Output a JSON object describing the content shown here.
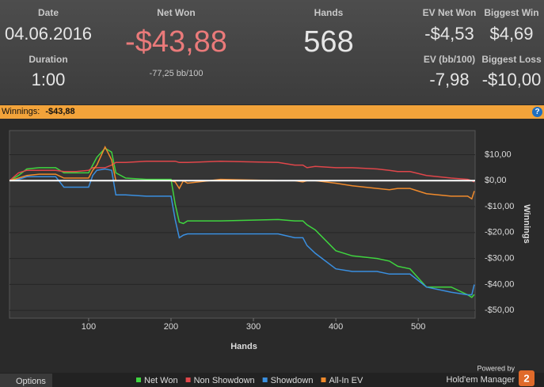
{
  "header": {
    "date_label": "Date",
    "date": "04.06.2016",
    "duration_label": "Duration",
    "duration": "1:00",
    "net_won_label": "Net Won",
    "net_won": "-$43,88",
    "bb_per_100": "-77,25 bb/100",
    "hands_label": "Hands",
    "hands": "568",
    "ev_net_won_label": "EV Net Won",
    "ev_net_won": "-$4,53",
    "biggest_win_label": "Biggest Win",
    "biggest_win": "$4,69",
    "ev_bb_label": "EV (bb/100)",
    "ev_bb": "-7,98",
    "biggest_loss_label": "Biggest Loss",
    "biggest_loss": "-$10,00"
  },
  "bar": {
    "label": "Winnings:",
    "value": "-$43,88",
    "help": "?"
  },
  "footer": {
    "options": "Options",
    "powered_by": "Powered by",
    "product": "Hold'em Manager",
    "badge": "2"
  },
  "chart_data": {
    "type": "line",
    "x_label": "Hands",
    "y_label": "Winnings",
    "x": [
      4,
      15,
      25,
      40,
      60,
      70,
      85,
      100,
      105,
      110,
      120,
      128,
      133,
      145,
      170,
      200,
      205,
      210,
      215,
      220,
      260,
      330,
      350,
      360,
      365,
      375,
      400,
      420,
      450,
      465,
      475,
      490,
      510,
      540,
      560,
      565,
      568
    ],
    "series": [
      {
        "name": "Net Won",
        "color": "#3fd43f",
        "values": [
          0,
          2,
          4.5,
          5,
          5,
          3,
          3,
          3,
          6,
          9,
          12.5,
          11,
          3,
          1,
          0.5,
          0.5,
          -9,
          -16,
          -16.5,
          -15.5,
          -15.5,
          -15,
          -15.5,
          -15.5,
          -17,
          -19,
          -27,
          -29,
          -30,
          -31,
          -33,
          -34,
          -41,
          -41,
          -44,
          -45,
          -43.88
        ]
      },
      {
        "name": "Non Showdown",
        "color": "#e0464a",
        "values": [
          0,
          3,
          4,
          4,
          4,
          3.5,
          3.5,
          4,
          5,
          5,
          5,
          6,
          7,
          7,
          7.5,
          7.5,
          7.5,
          7,
          7,
          7,
          7.5,
          7,
          6,
          6,
          5,
          5.5,
          5,
          5,
          4.5,
          4,
          3.5,
          3.5,
          2,
          1,
          0.5,
          0,
          -0.5
        ]
      },
      {
        "name": "Showdown",
        "color": "#3a8fe0",
        "values": [
          0,
          0.5,
          1.5,
          1.5,
          1.5,
          -2.5,
          -2.5,
          -2.5,
          2,
          4,
          4.5,
          4,
          -5.5,
          -5.5,
          -6,
          -6,
          -15,
          -22,
          -21,
          -20.5,
          -20.5,
          -20.5,
          -22,
          -22,
          -25,
          -28,
          -34,
          -35,
          -35,
          -36,
          -36,
          -36,
          -41,
          -43,
          -44,
          -44,
          -40
        ]
      },
      {
        "name": "All-In EV",
        "color": "#f08a2c",
        "values": [
          0,
          1,
          2,
          2.5,
          2.5,
          1,
          1,
          1,
          4,
          6,
          13,
          8,
          0,
          0,
          0,
          0,
          -0.5,
          -3,
          0,
          -1,
          0.5,
          0,
          0,
          -0.5,
          0,
          0,
          -1,
          -2,
          -3,
          -3.5,
          -3,
          -3,
          -5,
          -6,
          -6,
          -7,
          -4
        ]
      }
    ],
    "xlim": [
      4,
      569
    ],
    "ylim": [
      -53,
      19.3
    ],
    "xticks": [
      100,
      200,
      300,
      400,
      500
    ],
    "yticks": [
      {
        "value": 10,
        "label": "$10,00"
      },
      {
        "value": 0,
        "label": "$0,00"
      },
      {
        "value": -10,
        "label": "-$10,00"
      },
      {
        "value": -20,
        "label": "-$20,00"
      },
      {
        "value": -30,
        "label": "-$30,00"
      },
      {
        "value": -40,
        "label": "-$40,00"
      },
      {
        "value": -50,
        "label": "-$50,00"
      }
    ],
    "grid": true
  }
}
